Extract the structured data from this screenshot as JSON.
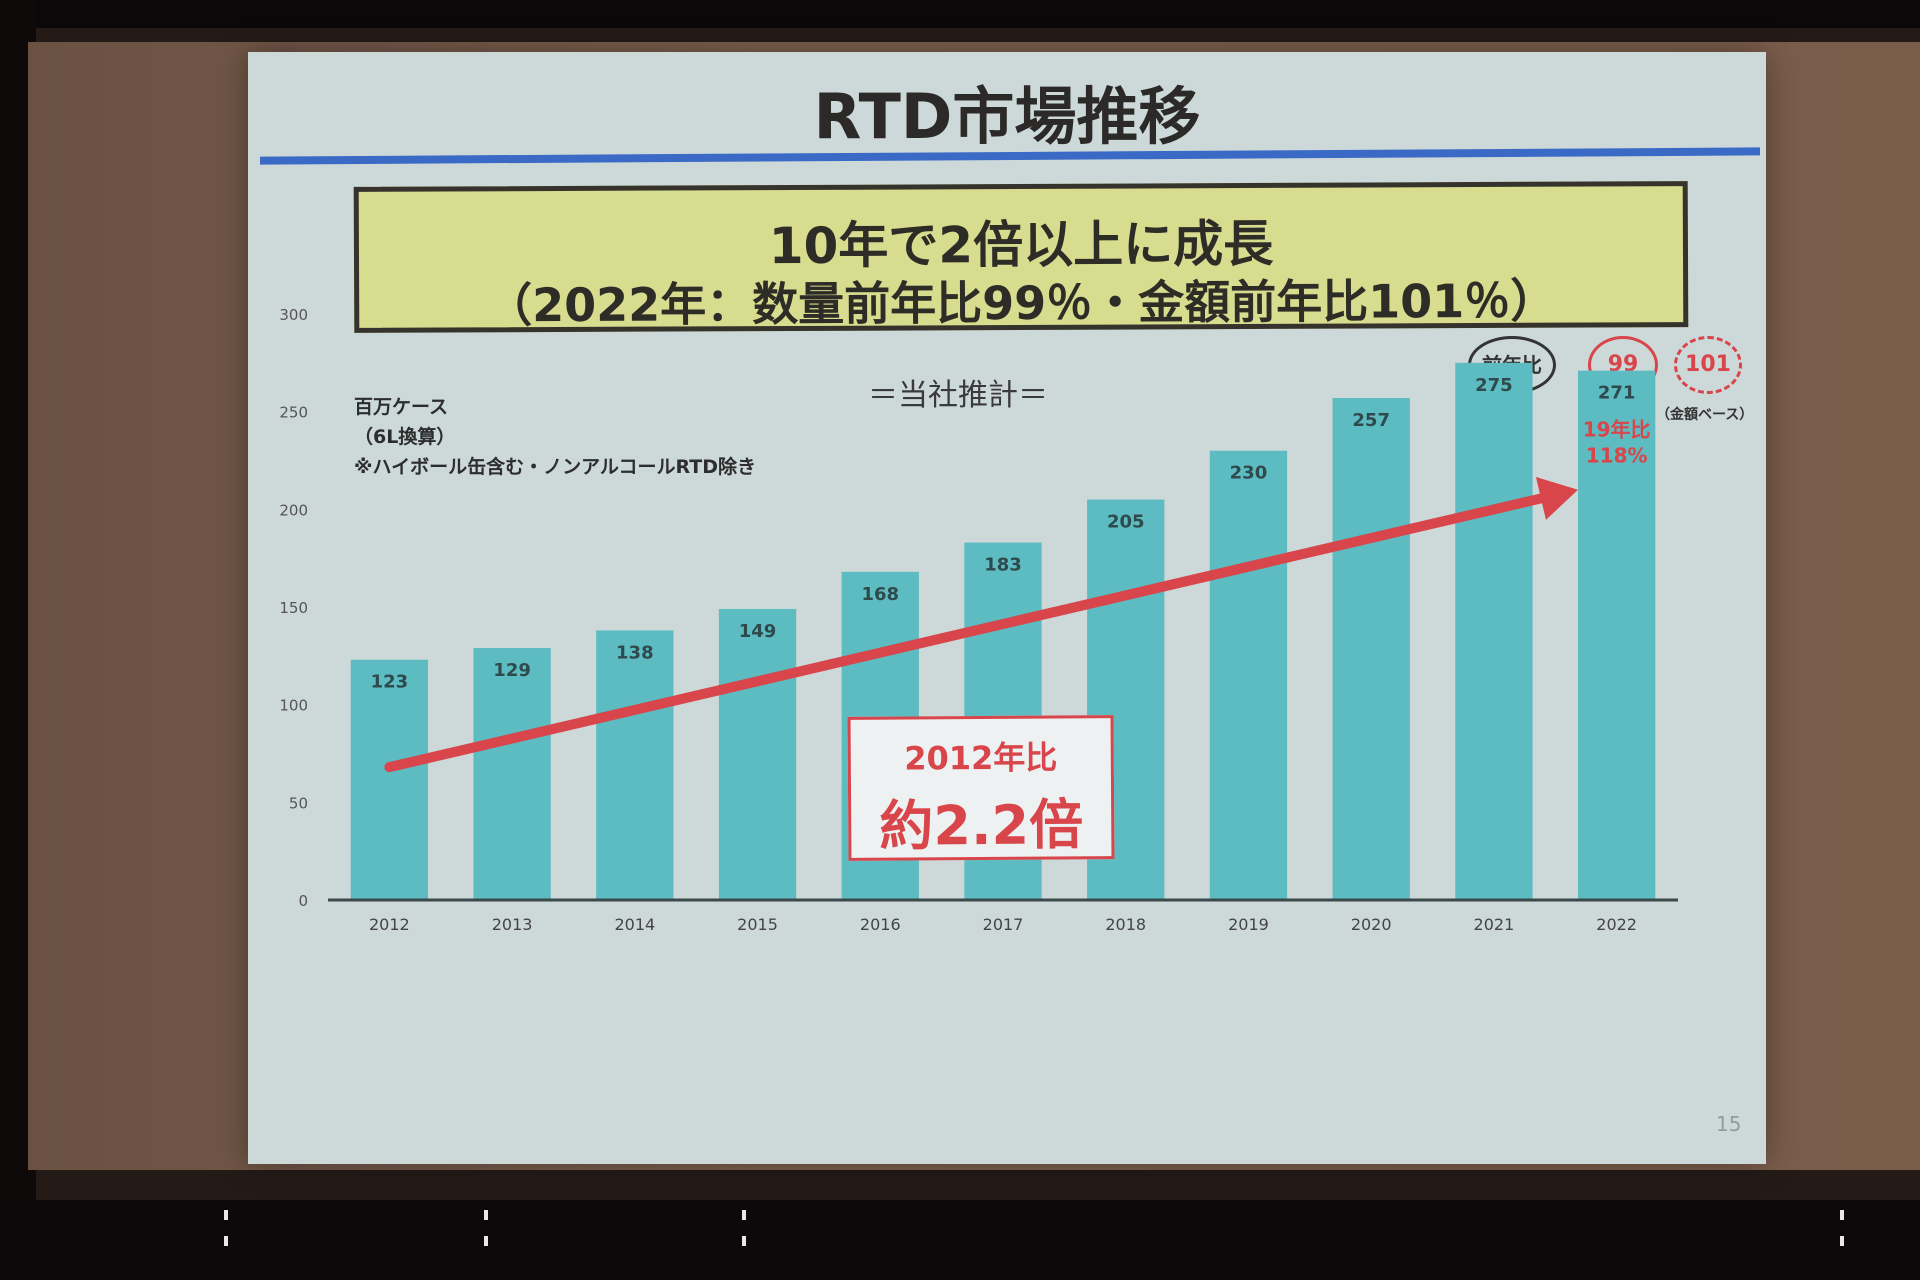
{
  "slide": {
    "title": "RTD市場推移",
    "headline_main": "10年で2倍以上に成長",
    "headline_sub": "（2022年：数量前年比99％・金額前年比101％）",
    "unit_lines": [
      "百万ケース",
      "（6L換算）",
      "※ハイボール缶含む・ノンアルコールRTD除き"
    ],
    "estimate_label": "＝当社推計＝",
    "yoy_label": "前年比",
    "yoy_volume": "99",
    "yoy_amount": "101",
    "amount_basis": "（金額ベース）",
    "callout_line1": "2012年比",
    "callout_line2": "約2.2倍",
    "note_line1": "19年比",
    "note_line2": "118%",
    "page_number": "15"
  },
  "chart_data": {
    "type": "bar",
    "categories": [
      "2012",
      "2013",
      "2014",
      "2015",
      "2016",
      "2017",
      "2018",
      "2019",
      "2020",
      "2021",
      "2022"
    ],
    "values": [
      123,
      129,
      138,
      149,
      168,
      183,
      205,
      230,
      257,
      275,
      271
    ],
    "ylim": [
      0,
      300
    ],
    "yticks": [
      0,
      50,
      100,
      150,
      200,
      250,
      300
    ],
    "bar_color": "#5cbcc1",
    "trend_arrow": {
      "from_category": "2012",
      "to_category": "2022",
      "from_value": 68,
      "to_value": 210
    },
    "accent_color": "#d8454a",
    "grid": false,
    "legend": "none"
  }
}
